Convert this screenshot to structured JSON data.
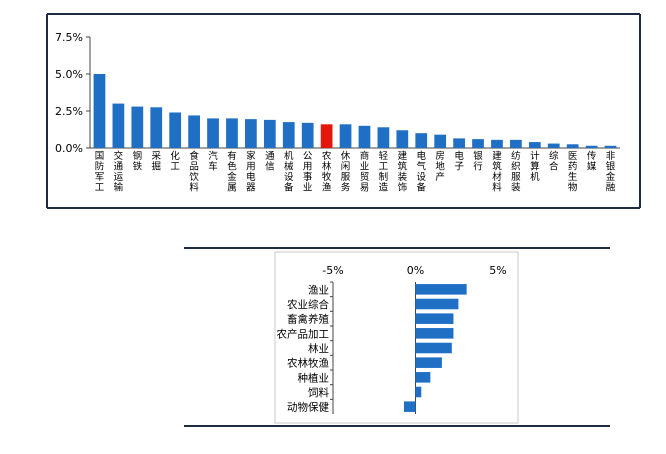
{
  "chart_data": [
    {
      "type": "bar",
      "categories": [
        "国防军工",
        "交通运输",
        "钢铁",
        "采掘",
        "化工",
        "食品饮料",
        "汽车",
        "有色金属",
        "家用电器",
        "通信",
        "机械设备",
        "公用事业",
        "农林牧渔",
        "休闲服务",
        "商业贸易",
        "轻工制造",
        "建筑装饰",
        "电气设备",
        "房地产",
        "电子",
        "银行",
        "建筑材料",
        "纺织服装",
        "计算机",
        "综合",
        "医药生物",
        "传媒",
        "非银金融"
      ],
      "values": [
        5.0,
        3.0,
        2.8,
        2.75,
        2.4,
        2.2,
        2.0,
        2.0,
        1.95,
        1.9,
        1.75,
        1.7,
        1.6,
        1.6,
        1.5,
        1.4,
        1.2,
        1.0,
        0.9,
        0.65,
        0.6,
        0.55,
        0.55,
        0.4,
        0.3,
        0.25,
        0.15,
        0.15
      ],
      "highlight": "农林牧渔",
      "bar_color": "#1f6fc5",
      "highlight_color": "#e3170a",
      "yticks": [
        "7.5%",
        "5.0%",
        "2.5%",
        "0.0%"
      ],
      "ylim": [
        0,
        7.5
      ],
      "unit": "%"
    },
    {
      "type": "bar",
      "orientation": "horizontal",
      "categories": [
        "渔业",
        "农业综合",
        "畜禽养殖",
        "农产品加工",
        "林业",
        "农林牧渔",
        "种植业",
        "饲料",
        "动物保健"
      ],
      "values": [
        3.1,
        2.6,
        2.3,
        2.3,
        2.2,
        1.6,
        0.9,
        0.35,
        -0.7
      ],
      "bar_color": "#1f6fc5",
      "xticks": [
        "-5%",
        "0%",
        "5%"
      ],
      "xlim": [
        -5,
        5
      ],
      "unit": "%"
    }
  ]
}
